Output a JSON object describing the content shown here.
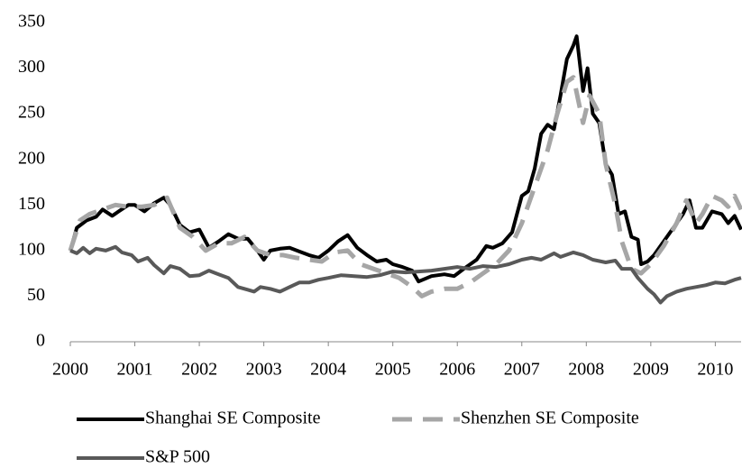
{
  "chart_data": {
    "type": "line",
    "xlim": [
      2000,
      2010.4
    ],
    "xticks": [
      2000,
      2001,
      2002,
      2003,
      2004,
      2005,
      2006,
      2007,
      2008,
      2009,
      2010
    ],
    "ylim": [
      0,
      350
    ],
    "yticks": [
      0,
      50,
      100,
      150,
      200,
      250,
      300,
      350
    ],
    "grid": false,
    "legend": "bottom",
    "series": [
      {
        "name": "Shanghai SE Composite",
        "color": "#000000",
        "dash": false,
        "x": [
          2000,
          2000.1,
          2000.25,
          2000.4,
          2000.5,
          2000.65,
          2000.75,
          2000.9,
          2001.0,
          2001.15,
          2001.3,
          2001.45,
          2001.55,
          2001.7,
          2001.85,
          2002.0,
          2002.15,
          2002.3,
          2002.45,
          2002.6,
          2002.75,
          2002.9,
          2003.0,
          2003.1,
          2003.25,
          2003.4,
          2003.55,
          2003.7,
          2003.85,
          2004.0,
          2004.15,
          2004.3,
          2004.45,
          2004.6,
          2004.75,
          2004.9,
          2005.0,
          2005.15,
          2005.3,
          2005.4,
          2005.6,
          2005.8,
          2005.95,
          2006.1,
          2006.3,
          2006.45,
          2006.55,
          2006.7,
          2006.85,
          2007.0,
          2007.1,
          2007.2,
          2007.3,
          2007.4,
          2007.5,
          2007.6,
          2007.7,
          2007.8,
          2007.85,
          2007.95,
          2008.02,
          2008.1,
          2008.2,
          2008.3,
          2008.4,
          2008.5,
          2008.6,
          2008.7,
          2008.8,
          2008.85,
          2008.95,
          2009.05,
          2009.2,
          2009.35,
          2009.5,
          2009.6,
          2009.7,
          2009.8,
          2009.95,
          2010.1,
          2010.2,
          2010.3,
          2010.4
        ],
        "values": [
          100,
          125,
          133,
          137,
          145,
          138,
          143,
          150,
          150,
          143,
          152,
          158,
          150,
          128,
          120,
          123,
          103,
          110,
          118,
          113,
          113,
          100,
          90,
          100,
          102,
          103,
          99,
          95,
          92,
          100,
          110,
          117,
          103,
          95,
          88,
          90,
          85,
          82,
          78,
          66,
          72,
          74,
          72,
          80,
          90,
          105,
          103,
          108,
          120,
          160,
          165,
          190,
          228,
          238,
          233,
          270,
          310,
          325,
          335,
          275,
          300,
          250,
          240,
          195,
          183,
          140,
          143,
          115,
          112,
          85,
          88,
          95,
          110,
          125,
          140,
          155,
          125,
          125,
          143,
          140,
          130,
          138,
          123
        ]
      },
      {
        "name": "Shenzhen SE Composite",
        "color": "#a6a6a6",
        "dash": true,
        "x": [
          2000,
          2000.15,
          2000.3,
          2000.5,
          2000.7,
          2000.9,
          2001.1,
          2001.3,
          2001.5,
          2001.7,
          2001.9,
          2002.1,
          2002.3,
          2002.5,
          2002.7,
          2002.9,
          2003.1,
          2003.3,
          2003.5,
          2003.7,
          2003.9,
          2004.1,
          2004.3,
          2004.5,
          2004.7,
          2004.9,
          2005.1,
          2005.3,
          2005.45,
          2005.6,
          2005.8,
          2006.0,
          2006.2,
          2006.4,
          2006.6,
          2006.8,
          2007.0,
          2007.2,
          2007.4,
          2007.55,
          2007.7,
          2007.8,
          2007.95,
          2008.05,
          2008.2,
          2008.3,
          2008.45,
          2008.55,
          2008.7,
          2008.85,
          2009.0,
          2009.2,
          2009.4,
          2009.55,
          2009.7,
          2009.8,
          2009.95,
          2010.1,
          2010.2,
          2010.3,
          2010.4
        ],
        "values": [
          100,
          133,
          140,
          145,
          150,
          148,
          148,
          150,
          158,
          125,
          115,
          100,
          108,
          108,
          115,
          100,
          95,
          95,
          92,
          90,
          88,
          98,
          100,
          85,
          80,
          75,
          70,
          60,
          50,
          55,
          58,
          58,
          65,
          75,
          85,
          100,
          130,
          170,
          210,
          250,
          285,
          290,
          240,
          270,
          250,
          195,
          150,
          110,
          80,
          75,
          85,
          105,
          130,
          155,
          130,
          140,
          160,
          155,
          148,
          160,
          145
        ]
      },
      {
        "name": "S&P 500",
        "color": "#595959",
        "dash": false,
        "x": [
          2000,
          2000.1,
          2000.2,
          2000.3,
          2000.4,
          2000.55,
          2000.7,
          2000.8,
          2000.95,
          2001.05,
          2001.2,
          2001.3,
          2001.45,
          2001.55,
          2001.7,
          2001.85,
          2002.0,
          2002.15,
          2002.3,
          2002.45,
          2002.6,
          2002.75,
          2002.85,
          2002.95,
          2003.1,
          2003.25,
          2003.4,
          2003.55,
          2003.7,
          2003.85,
          2004.0,
          2004.2,
          2004.4,
          2004.6,
          2004.8,
          2005.0,
          2005.2,
          2005.4,
          2005.6,
          2005.8,
          2006.0,
          2006.2,
          2006.4,
          2006.6,
          2006.8,
          2007.0,
          2007.15,
          2007.3,
          2007.5,
          2007.6,
          2007.8,
          2007.95,
          2008.1,
          2008.3,
          2008.45,
          2008.55,
          2008.7,
          2008.8,
          2008.95,
          2009.05,
          2009.15,
          2009.25,
          2009.4,
          2009.55,
          2009.7,
          2009.85,
          2010.0,
          2010.15,
          2010.3,
          2010.4
        ],
        "values": [
          100,
          97,
          103,
          97,
          102,
          100,
          104,
          98,
          95,
          88,
          92,
          84,
          75,
          83,
          80,
          72,
          73,
          78,
          74,
          70,
          60,
          57,
          55,
          60,
          58,
          55,
          60,
          65,
          65,
          68,
          70,
          73,
          72,
          71,
          73,
          77,
          76,
          77,
          78,
          80,
          82,
          80,
          83,
          82,
          85,
          90,
          92,
          90,
          97,
          93,
          98,
          95,
          90,
          87,
          89,
          80,
          80,
          70,
          58,
          52,
          43,
          50,
          55,
          58,
          60,
          62,
          65,
          64,
          68,
          70
        ]
      }
    ]
  }
}
